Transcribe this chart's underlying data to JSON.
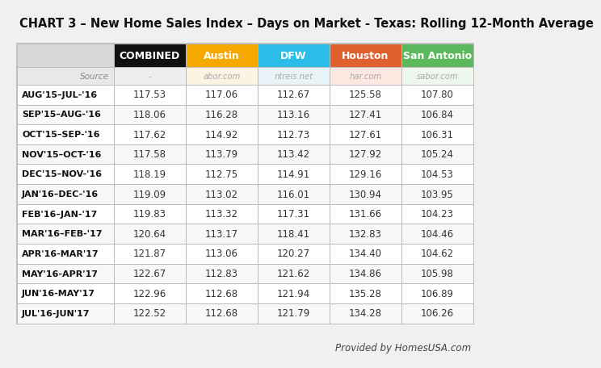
{
  "title": "CHART 3 – New Home Sales Index – Days on Market - Texas: Rolling 12-Month Average",
  "col_headers": [
    "COMBINED",
    "Austin",
    "DFW",
    "Houston",
    "San Antonio"
  ],
  "col_header_colors": [
    "#111111",
    "#f5a800",
    "#2bbde8",
    "#e06030",
    "#5cb85c"
  ],
  "col_header_text_colors": [
    "#ffffff",
    "#ffffff",
    "#ffffff",
    "#ffffff",
    "#ffffff"
  ],
  "source_row": [
    "-",
    "abor.com",
    "ntreis.net",
    "har.com",
    "sabor.com"
  ],
  "source_col_bg": [
    "#eeeeee",
    "#fdf3e3",
    "#e8f4f8",
    "#fce8e0",
    "#edf7ed"
  ],
  "row_labels": [
    "AUG'15–JUL-'16",
    "SEP'15–AUG-'16",
    "OCT'15–SEP-'16",
    "NOV'15–OCT-'16",
    "DEC'15–NOV-'16",
    "JAN'16–DEC-'16",
    "FEB'16–JAN-'17",
    "MAR'16–FEB-'17",
    "APR'16-MAR'17",
    "MAY'16-APR'17",
    "JUN'16-MAY'17",
    "JUL'16-JUN'17"
  ],
  "data": [
    [
      117.53,
      117.06,
      112.67,
      125.58,
      107.8
    ],
    [
      118.06,
      116.28,
      113.16,
      127.41,
      106.84
    ],
    [
      117.62,
      114.92,
      112.73,
      127.61,
      106.31
    ],
    [
      117.58,
      113.79,
      113.42,
      127.92,
      105.24
    ],
    [
      118.19,
      112.75,
      114.91,
      129.16,
      104.53
    ],
    [
      119.09,
      113.02,
      116.01,
      130.94,
      103.95
    ],
    [
      119.83,
      113.32,
      117.31,
      131.66,
      104.23
    ],
    [
      120.64,
      113.17,
      118.41,
      132.83,
      104.46
    ],
    [
      121.87,
      113.06,
      120.27,
      134.4,
      104.62
    ],
    [
      122.67,
      112.83,
      121.62,
      134.86,
      105.98
    ],
    [
      122.96,
      112.68,
      121.94,
      135.28,
      106.89
    ],
    [
      122.52,
      112.68,
      121.79,
      134.28,
      106.26
    ]
  ],
  "footer": "Provided by HomesUSA.com",
  "bg_color": "#f0f0f0",
  "table_bg": "#ffffff",
  "row_bg_even": "#ffffff",
  "row_bg_odd": "#f7f7f7",
  "border_color": "#bbbbbb",
  "header_first_bg": "#d8d8d8",
  "source_first_bg": "#e8e8e8"
}
